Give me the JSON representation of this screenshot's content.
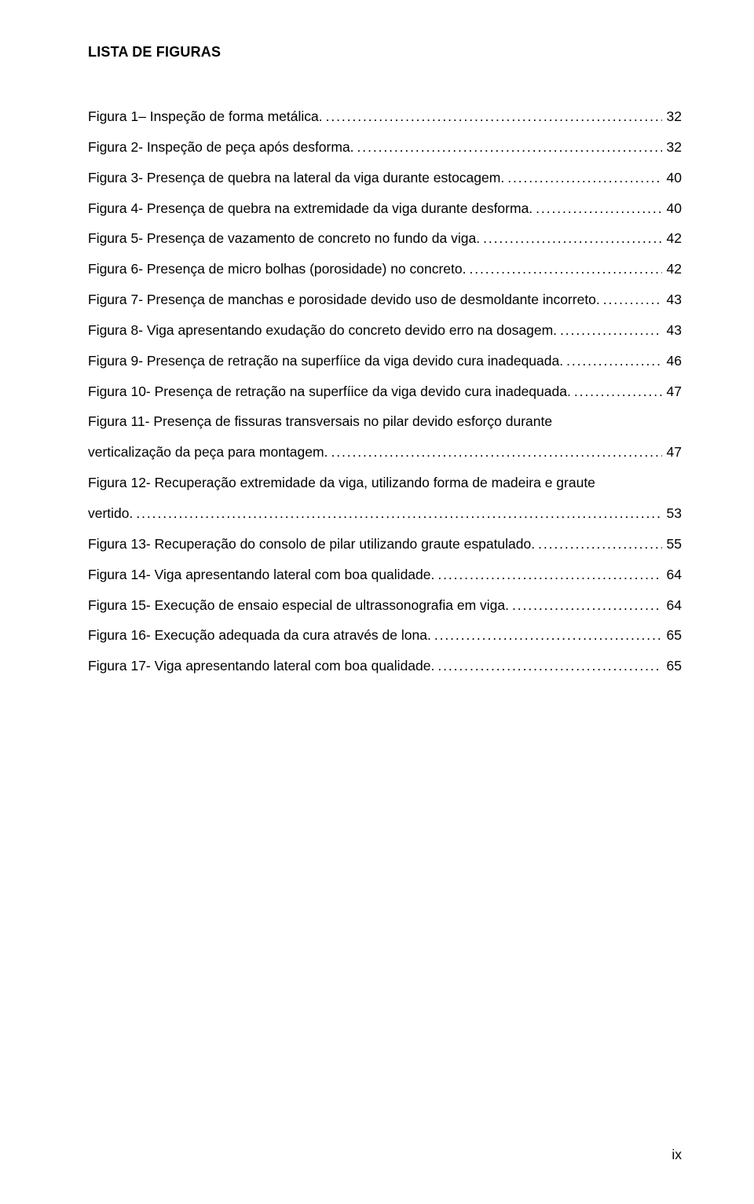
{
  "heading": "LISTA DE FIGURAS",
  "entries": [
    {
      "text": "Figura 1– Inspeção de forma metálica.",
      "page": "32"
    },
    {
      "text": "Figura 2- Inspeção de peça após desforma.",
      "page": "32"
    },
    {
      "text": "Figura 3- Presença de quebra na lateral da viga durante estocagem.",
      "page": "40"
    },
    {
      "text": "Figura 4- Presença de quebra na extremidade da viga durante desforma.",
      "page": "40"
    },
    {
      "text": "Figura 5- Presença de vazamento de concreto no fundo da viga.",
      "page": "42"
    },
    {
      "text": "Figura 6- Presença de micro bolhas (porosidade) no concreto.",
      "page": "42"
    },
    {
      "text": "Figura 7- Presença de manchas e porosidade devido uso de desmoldante incorreto.",
      "page": "43"
    },
    {
      "text": "Figura 8- Viga apresentando exudação do concreto devido erro na dosagem.",
      "page": "43"
    },
    {
      "text": "Figura 9- Presença de retração na superfíice da viga devido cura inadequada.",
      "page": "46"
    },
    {
      "text": "Figura 10- Presença de retração na superfíice da viga devido cura inadequada.",
      "page": "47"
    },
    {
      "text_line1": "Figura 11- Presença de fissuras transversais no pilar devido esforço durante",
      "text_line2": "verticalização da peça para montagem.",
      "page": "47",
      "multiline": true
    },
    {
      "text_line1": "Figura 12- Recuperação extremidade da viga, utilizando forma de madeira e graute",
      "text_line2": "vertido.",
      "page": "53",
      "multiline": true
    },
    {
      "text": "Figura 13- Recuperação do consolo de pilar utilizando graute espatulado.",
      "page": "55"
    },
    {
      "text": "Figura 14- Viga apresentando lateral com boa qualidade.",
      "page": "64"
    },
    {
      "text": "Figura 15- Execução de ensaio especial de ultrassonografia em viga.",
      "page": "64"
    },
    {
      "text": "Figura 16- Execução adequada da cura através de lona.",
      "page": "65"
    },
    {
      "text": "Figura 17- Viga apresentando lateral com boa qualidade.",
      "page": "65"
    }
  ],
  "page_number": "ix"
}
